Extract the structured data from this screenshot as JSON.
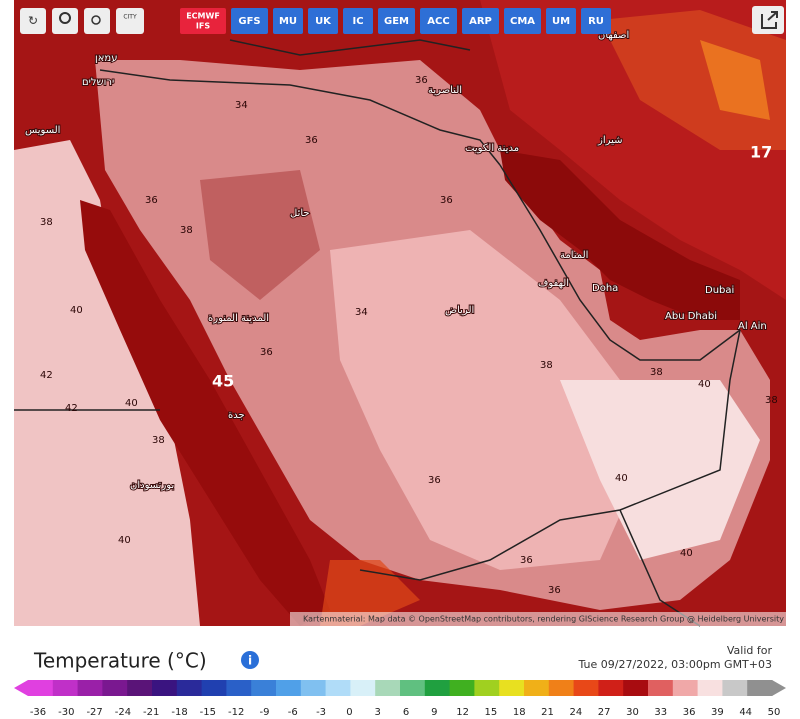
{
  "toolbar": {
    "city_button": "CITY",
    "primary_model": [
      "ECMWF",
      "IFS"
    ],
    "models": [
      "GFS",
      "MU",
      "UK",
      "IC",
      "GEM",
      "ACC",
      "ARP",
      "CMA",
      "UM",
      "RU"
    ]
  },
  "map": {
    "places": [
      "עמאן",
      "ירושלים",
      "السويس",
      "اصفهان",
      "الناصرية",
      "مدينة الكويت",
      "شيراز",
      "حائل",
      "المنامة",
      "الهفوف",
      "Doha",
      "Dubai",
      "الرياض",
      "المدينة المنورة",
      "Abu Dhabi",
      "Al Ain",
      "جدة",
      "بورتسودان"
    ],
    "temp_labels": [
      "36",
      "36",
      "34",
      "38",
      "36",
      "38",
      "40",
      "36",
      "34",
      "36",
      "38",
      "40",
      "38",
      "40",
      "38",
      "42",
      "42",
      "40",
      "38",
      "40",
      "36",
      "36",
      "40",
      "45",
      "17",
      "36"
    ],
    "attribution": "Kartenmaterial: Map data © OpenStreetMap contributors, rendering GIScience Research Group @ Heidelberg University"
  },
  "legend": {
    "title": "Temperature (°C)",
    "valid_label": "Valid for",
    "valid_time": "Tue 09/27/2022, 03:00pm GMT+03",
    "ticks": [
      -36,
      -30,
      -27,
      -24,
      -21,
      -18,
      -15,
      -12,
      -9,
      -6,
      -3,
      0,
      3,
      6,
      9,
      12,
      15,
      18,
      21,
      24,
      27,
      30,
      33,
      36,
      39,
      44,
      50
    ],
    "colors": [
      "#e040e0",
      "#c030c8",
      "#9a20a8",
      "#7a1890",
      "#5a1478",
      "#3a1480",
      "#2a2a9a",
      "#2040b0",
      "#2a60c8",
      "#3a80d8",
      "#50a0e8",
      "#80c0f0",
      "#b0dcf8",
      "#d8f0f8",
      "#a8d8b8",
      "#60c080",
      "#20a040",
      "#40b020",
      "#a0d020",
      "#e8e020",
      "#f0b018",
      "#f08018",
      "#e84818",
      "#d02018",
      "#a80c10",
      "#e06060",
      "#f0a8a8",
      "#f8e0e0",
      "#c8c8c8",
      "#909090"
    ]
  }
}
